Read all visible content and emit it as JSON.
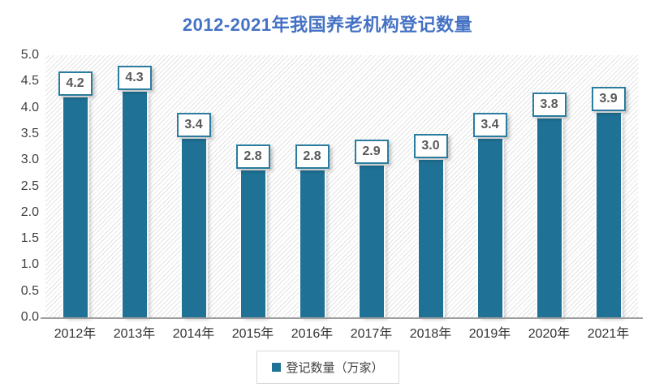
{
  "title": {
    "text": "2012-2021年我国养老机构登记数量",
    "color": "#4472C4"
  },
  "chart_data": {
    "type": "bar",
    "title": "2012-2021年我国养老机构登记数量",
    "categories": [
      "2012年",
      "2013年",
      "2014年",
      "2015年",
      "2016年",
      "2017年",
      "2018年",
      "2019年",
      "2020年",
      "2021年"
    ],
    "series": [
      {
        "name": "登记数量（万家）",
        "values": [
          4.2,
          4.3,
          3.4,
          2.8,
          2.8,
          2.9,
          3.0,
          3.4,
          3.8,
          3.9
        ]
      }
    ],
    "xlabel": "",
    "ylabel": "",
    "ylim": [
      0,
      5
    ],
    "ytick_step": 0.5,
    "yticks": [
      "5.0",
      "4.5",
      "4.0",
      "3.5",
      "3.0",
      "2.5",
      "2.0",
      "1.5",
      "1.0",
      "0.5",
      "0.0"
    ],
    "grid": false,
    "plot_background": "diagonal-hatch",
    "data_labels": "boxed, one decimal",
    "legend_position": "bottom-center",
    "colors": {
      "bar": "#1F7296",
      "value_box_border": "#2A7D9F",
      "value_box_bg": "#ffffff",
      "value_text": "#595959",
      "axis_line": "#9e9e9e",
      "tick_text": "#404040",
      "hatch_line": "#e4e4e4",
      "legend_border": "#d9d9d9"
    }
  },
  "legend": {
    "label": "登记数量（万家）",
    "marker_color": "#1F7296"
  }
}
